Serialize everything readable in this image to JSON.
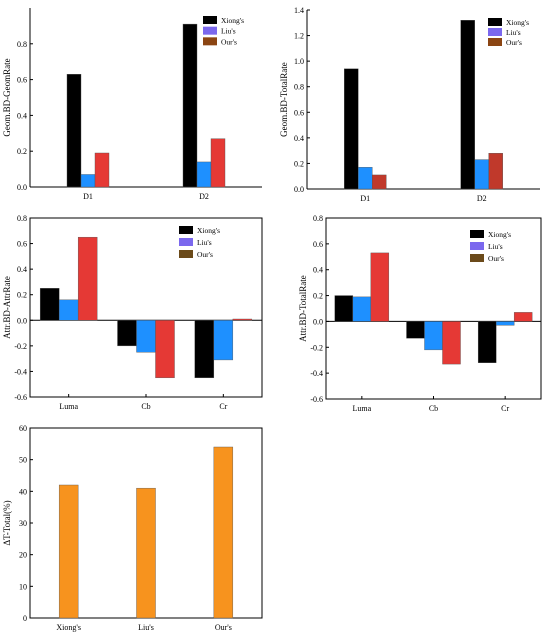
{
  "chart_data": [
    {
      "id": "geom-bd-geomrate",
      "type": "bar",
      "ylabel": "Geom.BD-GeomRate",
      "categories": [
        "D1",
        "D2"
      ],
      "ylim": [
        0,
        1.0
      ],
      "yticks": [
        0.0,
        0.2,
        0.4,
        0.6,
        0.8
      ],
      "ytick_labels": [
        "0.0",
        "0.2",
        "0.4",
        "0.6",
        "0.8"
      ],
      "series": [
        {
          "name": "Xiong's",
          "color": "#000000",
          "values": [
            0.63,
            0.91
          ]
        },
        {
          "name": "Liu's",
          "color": "#1e90ff",
          "values": [
            0.07,
            0.14
          ]
        },
        {
          "name": "Our's",
          "color": "#e53935",
          "values": [
            0.19,
            0.27
          ]
        }
      ],
      "legend_labels": [
        "Xiong's",
        "Liu's",
        "Our's"
      ],
      "legend_colors": [
        "#000000",
        "#7b68ee",
        "#8b4513"
      ],
      "legend": "top-right"
    },
    {
      "id": "geom-bd-totalrate",
      "type": "bar",
      "ylabel": "Geom.BD-TotalRate",
      "categories": [
        "D1",
        "D2"
      ],
      "ylim": [
        0,
        1.4
      ],
      "yticks": [
        0.0,
        0.2,
        0.4,
        0.6,
        0.8,
        1.0,
        1.2,
        1.4
      ],
      "ytick_labels": [
        "0.0",
        "0.2",
        "0.4",
        "0.6",
        "0.8",
        "1.0",
        "1.2",
        "1.4"
      ],
      "series": [
        {
          "name": "Xiong's",
          "color": "#000000",
          "values": [
            0.94,
            1.32
          ]
        },
        {
          "name": "Liu's",
          "color": "#1e90ff",
          "values": [
            0.17,
            0.23
          ]
        },
        {
          "name": "Our's",
          "color": "#c0392b",
          "values": [
            0.11,
            0.28
          ]
        }
      ],
      "legend_labels": [
        "Xiong's",
        "Liu's",
        "Our's"
      ],
      "legend_colors": [
        "#000000",
        "#7b68ee",
        "#8b4513"
      ],
      "legend": "top-right"
    },
    {
      "id": "attr-bd-attrrate",
      "type": "bar",
      "ylabel": "Attr.BD-AttrRate",
      "categories": [
        "Luma",
        "Cb",
        "Cr"
      ],
      "ylim": [
        -0.6,
        0.8
      ],
      "yticks": [
        -0.6,
        -0.4,
        -0.2,
        0.0,
        0.2,
        0.4,
        0.6,
        0.8
      ],
      "ytick_labels": [
        "-0.6",
        "-0.4",
        "-0.2",
        "0.0",
        "0.2",
        "0.4",
        "0.6",
        "0.8"
      ],
      "series": [
        {
          "name": "Xiong's",
          "color": "#000000",
          "values": [
            0.25,
            -0.2,
            -0.45
          ]
        },
        {
          "name": "Liu's",
          "color": "#1e90ff",
          "values": [
            0.16,
            -0.25,
            -0.31
          ]
        },
        {
          "name": "Our's",
          "color": "#e53935",
          "values": [
            0.65,
            -0.45,
            0.01
          ]
        }
      ],
      "legend_labels": [
        "Xiong's",
        "Liu's",
        "Our's"
      ],
      "legend_colors": [
        "#000000",
        "#7b68ee",
        "#6b4a1a"
      ],
      "legend": "top-right"
    },
    {
      "id": "attr-bd-totalrate",
      "type": "bar",
      "ylabel": "Attr.BD-TotalRate",
      "categories": [
        "Luma",
        "Cb",
        "Cr"
      ],
      "ylim": [
        -0.6,
        0.8
      ],
      "yticks": [
        -0.6,
        -0.4,
        -0.2,
        0.0,
        0.2,
        0.4,
        0.6,
        0.8
      ],
      "ytick_labels": [
        "-0.6",
        "-0.4",
        "-0.2",
        "0.0",
        "0.2",
        "0.4",
        "0.6",
        "0.8"
      ],
      "series": [
        {
          "name": "Xiong's",
          "color": "#000000",
          "values": [
            0.2,
            -0.13,
            -0.32
          ]
        },
        {
          "name": "Liu's",
          "color": "#1e90ff",
          "values": [
            0.19,
            -0.22,
            -0.03
          ]
        },
        {
          "name": "Our's",
          "color": "#e53935",
          "values": [
            0.53,
            -0.33,
            0.07
          ]
        }
      ],
      "legend_labels": [
        "Xiong's",
        "Liu's",
        "Our's"
      ],
      "legend_colors": [
        "#000000",
        "#7b68ee",
        "#6b4a1a"
      ],
      "legend": "top-right"
    },
    {
      "id": "delta-t-total",
      "type": "bar",
      "ylabel": "ΔT-Total(%)",
      "categories": [
        "Xiong's",
        "Liu's",
        "Our's"
      ],
      "ylim": [
        0,
        60
      ],
      "yticks": [
        0,
        10,
        20,
        30,
        40,
        50,
        60
      ],
      "ytick_labels": [
        "0",
        "10",
        "20",
        "30",
        "40",
        "50",
        "60"
      ],
      "series": [
        {
          "color": "#f7931e",
          "values": [
            42,
            41,
            54
          ]
        }
      ]
    }
  ]
}
